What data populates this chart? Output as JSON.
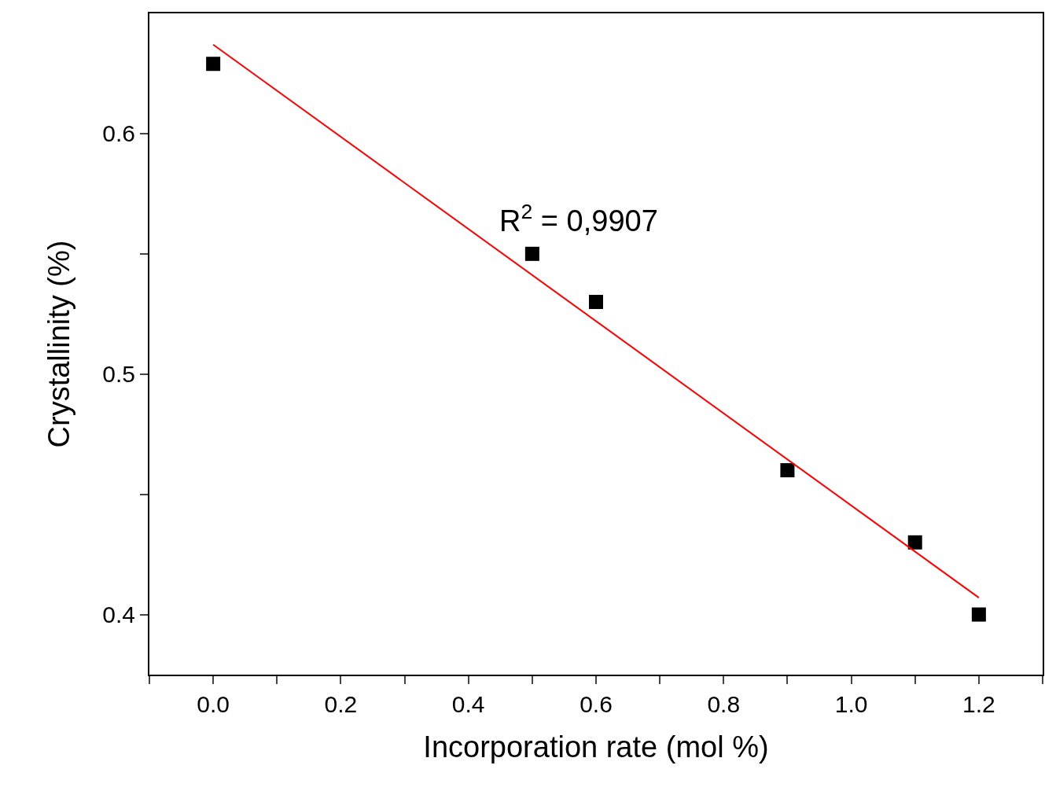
{
  "chart_data": {
    "type": "scatter",
    "xlabel": "Incorporation rate (mol %)",
    "ylabel": "Crystallinity (%)",
    "x": [
      0,
      0.5,
      0.6,
      0.9,
      1.1,
      1.2
    ],
    "series": [
      {
        "color": "#000000",
        "marker": "square",
        "values": [
          0.629,
          0.55,
          0.53,
          0.46,
          0.43,
          0.4
        ]
      },
      {
        "type": "line",
        "color": "#ff0000",
        "x": [
          0,
          1.2
        ],
        "values": [
          0.637,
          0.407
        ]
      }
    ],
    "annotations": [
      "R$^{2}$ = 0,9907"
    ],
    "xlim": [
      -0.1,
      1.3
    ],
    "ylim": [
      0.375,
      0.65
    ],
    "xticks": [
      {
        "value": -0.1,
        "label": null
      },
      {
        "value": 0,
        "label": "0.0"
      },
      {
        "value": 0.1,
        "label": null
      },
      0.2,
      {
        "value": 0.3,
        "label": null
      },
      0.4,
      {
        "value": 0.5,
        "label": null
      },
      0.6,
      {
        "value": 0.7,
        "label": null
      },
      0.8,
      {
        "value": 0.9,
        "label": null
      },
      {
        "value": 1,
        "label": "1.0"
      },
      {
        "value": 1.1,
        "label": null
      },
      1.2,
      {
        "value": 1.3,
        "label": null
      }
    ],
    "yticks": [
      0.4,
      {
        "value": 0.45,
        "label": null
      },
      0.5,
      {
        "value": 0.55,
        "label": null
      },
      0.6
    ]
  }
}
